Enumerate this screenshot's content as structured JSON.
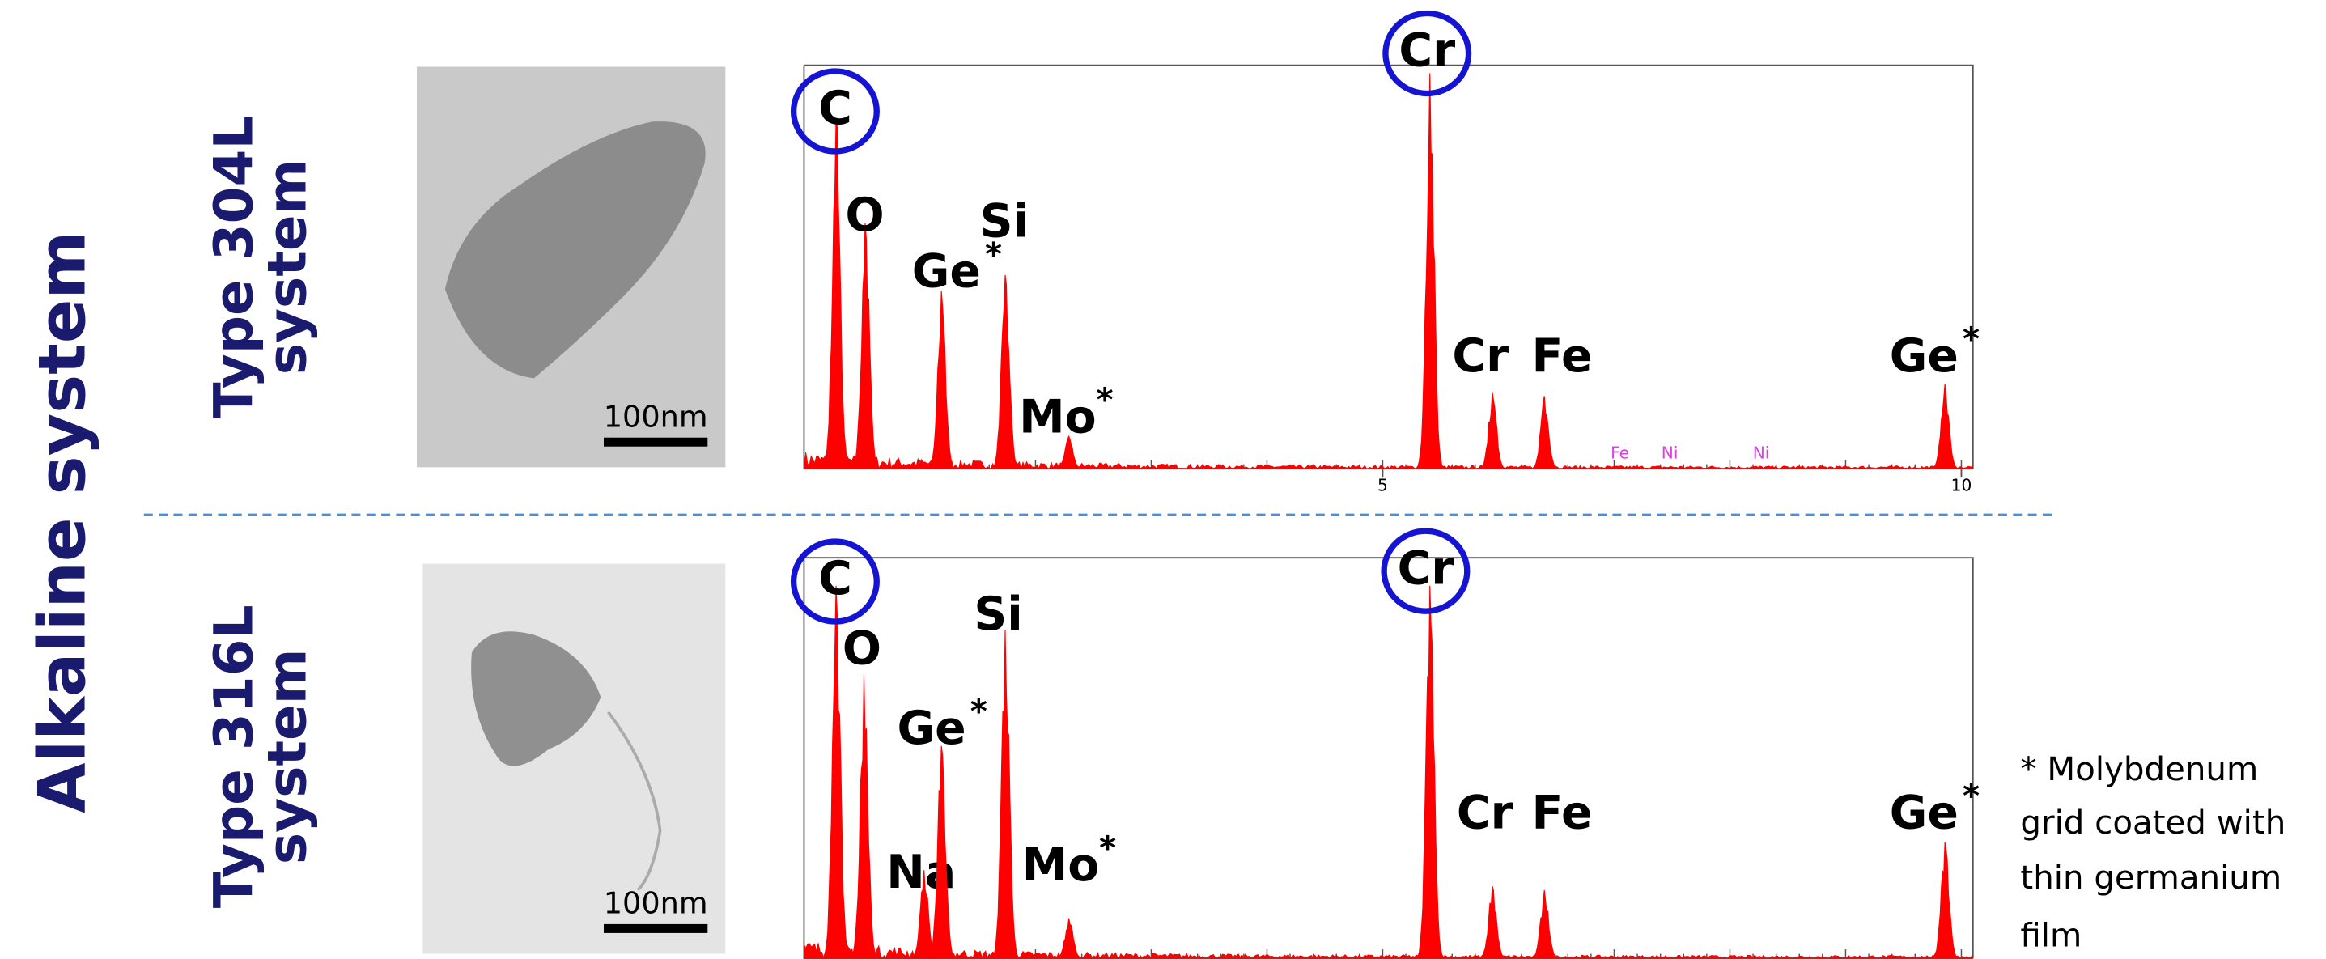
{
  "side_title": "Alkaline system",
  "footnote": [
    "* Molybdenum",
    "grid coated with",
    "thin germanium",
    "film"
  ],
  "chart_data": [
    {
      "type": "spectrum",
      "row_label": [
        "Type 304L",
        "system"
      ],
      "image_scale_label": "100nm",
      "xlim": [
        0,
        10.1
      ],
      "xticks": [
        5,
        10
      ],
      "ylim": [
        0,
        100
      ],
      "color": "#ff0000",
      "peaks": [
        {
          "label": "C",
          "x": 0.28,
          "value": 87,
          "highlight": true
        },
        {
          "label": "O",
          "x": 0.53,
          "value": 61
        },
        {
          "label": "Ge",
          "sup": "*",
          "x": 1.19,
          "value": 44
        },
        {
          "label": "Si",
          "x": 1.74,
          "value": 48
        },
        {
          "label": "Mo",
          "sup": "*",
          "x": 2.29,
          "value": 8
        },
        {
          "label": "Cr",
          "x": 5.41,
          "value": 98,
          "highlight": true
        },
        {
          "label": "Cr",
          "x": 5.95,
          "value": 19
        },
        {
          "label": "Fe",
          "x": 6.4,
          "value": 18
        },
        {
          "label": "Ge",
          "sup": "*",
          "x": 9.86,
          "value": 21
        }
      ],
      "minor_labels": [
        {
          "text": "Fe",
          "x": 7.05
        },
        {
          "text": "Ni",
          "x": 7.48
        },
        {
          "text": "Ni",
          "x": 8.27
        }
      ]
    },
    {
      "type": "spectrum",
      "row_label": [
        "Type 316L",
        "system"
      ],
      "image_scale_label": "100nm",
      "xlim": [
        0,
        10.1
      ],
      "ylim": [
        0,
        100
      ],
      "color": "#ff0000",
      "peaks": [
        {
          "label": "C",
          "x": 0.28,
          "value": 93,
          "highlight": true
        },
        {
          "label": "O",
          "x": 0.52,
          "value": 71
        },
        {
          "label": "Na",
          "x": 1.04,
          "value": 22
        },
        {
          "label": "Ge",
          "sup": "*",
          "x": 1.19,
          "value": 53
        },
        {
          "label": "Si",
          "x": 1.74,
          "value": 82
        },
        {
          "label": "Mo",
          "sup": "*",
          "x": 2.29,
          "value": 10
        },
        {
          "label": "Cr",
          "x": 5.41,
          "value": 93,
          "highlight": true
        },
        {
          "label": "Cr",
          "x": 5.95,
          "value": 18
        },
        {
          "label": "Fe",
          "x": 6.4,
          "value": 17
        },
        {
          "label": "Ge",
          "sup": "*",
          "x": 9.86,
          "value": 29
        }
      ]
    }
  ]
}
